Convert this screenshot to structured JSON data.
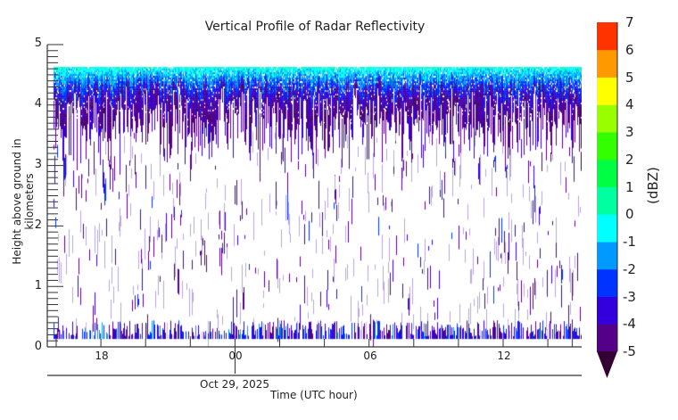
{
  "chart_data": {
    "type": "heatmap",
    "title": "Vertical Profile of Radar Reflectivity",
    "xlabel": "Time (UTC hour)",
    "ylabel": "Height above ground in kilometers",
    "colorbar_label": "(dBZ)",
    "x_tick_labels": [
      "18",
      "00",
      "06",
      "12"
    ],
    "x_tick_hours_every": 3,
    "x_range_utc": [
      "Oct 28 ~15:40",
      "Oct 29 ~15:40"
    ],
    "date_annotation": "Oct 29, 2025",
    "y_tick_labels": [
      "0",
      "1",
      "2",
      "3",
      "4",
      "5"
    ],
    "ylim": [
      0,
      5
    ],
    "y_minor_tick_step": 0.1,
    "data_height_range_km": [
      0.13,
      4.63
    ],
    "colorbar": {
      "levels": [
        -5,
        -4,
        -3,
        -2,
        -1,
        0,
        1,
        2,
        3,
        4,
        5,
        6,
        7
      ],
      "colors": [
        "#550088",
        "#3300dd",
        "#0033ff",
        "#0099ff",
        "#00ffff",
        "#00ffa0",
        "#00ff44",
        "#33ff00",
        "#99ff00",
        "#ffff00",
        "#ff9900",
        "#ff3300"
      ],
      "under_color": "#330033",
      "extend": "min"
    },
    "profile_summary": [
      {
        "height_km_range": [
          4.4,
          4.63
        ],
        "typical_dBZ": [
          -2,
          1
        ],
        "coverage": "near-continuous"
      },
      {
        "height_km_range": [
          3.7,
          4.4
        ],
        "typical_dBZ": [
          -5,
          -2
        ],
        "coverage": "dense"
      },
      {
        "height_km_range": [
          0.3,
          3.7
        ],
        "typical_dBZ": [
          -6,
          -4
        ],
        "coverage": "sparse streaks"
      },
      {
        "height_km_range": [
          0.13,
          0.3
        ],
        "typical_dBZ": [
          -5,
          -2
        ],
        "coverage": "frequent near-surface returns"
      }
    ]
  },
  "render": {
    "seed": 20251029,
    "columns": 600
  },
  "labels": {
    "title": "Vertical Profile of Radar Reflectivity",
    "ylabel": "Height above ground in kilometers",
    "xlabel": "Time (UTC hour)",
    "date": "Oct 29, 2025",
    "cbar_label": "(dBZ)",
    "yticks": [
      "0",
      "1",
      "2",
      "3",
      "4",
      "5"
    ],
    "xticks": [
      "18",
      "00",
      "06",
      "12"
    ],
    "cbar_ticks": [
      "7",
      "6",
      "5",
      "4",
      "3",
      "2",
      "1",
      "0",
      "-1",
      "-2",
      "-3",
      "-4",
      "-5"
    ]
  }
}
